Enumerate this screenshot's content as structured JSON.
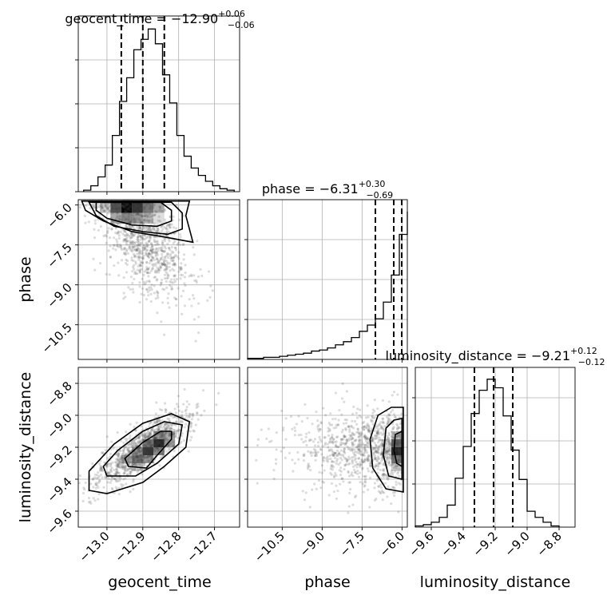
{
  "figure": {
    "type": "corner plot"
  },
  "chart_data": [
    {
      "panel": "geocent_time-marginal",
      "type": "histogram",
      "title": "geocent_time = −12.90",
      "title_plus": "+0.06",
      "title_minus": "−0.06",
      "xlim": [
        -13.08,
        -12.63
      ],
      "x_ticks": [
        -13.0,
        -12.9,
        -12.8,
        -12.7
      ],
      "quantiles": [
        -12.96,
        -12.9,
        -12.84
      ],
      "bin_edges": [
        -13.065,
        -13.045,
        -13.025,
        -13.005,
        -12.985,
        -12.965,
        -12.945,
        -12.925,
        -12.905,
        -12.885,
        -12.865,
        -12.845,
        -12.825,
        -12.805,
        -12.785,
        -12.765,
        -12.745,
        -12.725,
        -12.705,
        -12.685,
        -12.665,
        -12.645
      ],
      "counts": [
        1,
        4,
        10,
        18,
        38,
        61,
        77,
        96,
        103,
        110,
        100,
        79,
        60,
        38,
        24,
        16,
        11,
        7,
        4,
        2,
        1
      ]
    },
    {
      "panel": "phase-marginal",
      "type": "histogram",
      "title": "phase = −6.31",
      "title_plus": "+0.30",
      "title_minus": "−0.69",
      "xlim": [
        -11.8,
        -5.8
      ],
      "x_ticks": [
        -10.5,
        -9.0,
        -7.5,
        -6.0
      ],
      "quantiles": [
        -7.0,
        -6.31,
        -6.01
      ],
      "bin_edges": [
        -11.8,
        -11.5,
        -11.2,
        -10.9,
        -10.6,
        -10.3,
        -10.0,
        -9.7,
        -9.4,
        -9.1,
        -8.8,
        -8.5,
        -8.2,
        -7.9,
        -7.6,
        -7.3,
        -7.0,
        -6.7,
        -6.4,
        -6.1,
        -5.8
      ],
      "counts": [
        1,
        1,
        2,
        2,
        3,
        4,
        5,
        6,
        8,
        9,
        11,
        14,
        17,
        21,
        27,
        33,
        39,
        55,
        81,
        120,
        142
      ]
    },
    {
      "panel": "luminosity_distance-marginal",
      "type": "histogram",
      "title": "luminosity_distance = −9.21",
      "title_plus": "+0.12",
      "title_minus": "−0.12",
      "xlim": [
        -9.7,
        -8.7
      ],
      "x_ticks": [
        -9.6,
        -9.4,
        -9.2,
        -9.0,
        -8.8
      ],
      "quantiles": [
        -9.33,
        -9.21,
        -9.09
      ],
      "bin_edges": [
        -9.7,
        -9.65,
        -9.6,
        -9.55,
        -9.5,
        -9.45,
        -9.4,
        -9.35,
        -9.3,
        -9.25,
        -9.2,
        -9.15,
        -9.1,
        -9.05,
        -9.0,
        -8.95,
        -8.9,
        -8.85,
        -8.8
      ],
      "counts": [
        1,
        2,
        4,
        8,
        18,
        40,
        66,
        93,
        112,
        121,
        114,
        91,
        63,
        39,
        13,
        8,
        4,
        1
      ]
    },
    {
      "panel": "phase-vs-geocent_time",
      "type": "scatter",
      "x_label": "geocent_time",
      "y_label": "phase",
      "xlim": [
        -13.08,
        -12.63
      ],
      "ylim": [
        -11.8,
        -5.8
      ],
      "x_ticks": [
        -13.0,
        -12.9,
        -12.8,
        -12.7
      ],
      "y_ticks": [
        -10.5,
        -9.0,
        -7.5,
        -6.0
      ],
      "density_peak": {
        "x": -12.95,
        "y": -6.1
      },
      "correlation": "negative"
    },
    {
      "panel": "luminosity_distance-vs-geocent_time",
      "type": "scatter",
      "x_label": "geocent_time",
      "y_label": "luminosity_distance",
      "xlim": [
        -13.08,
        -12.63
      ],
      "ylim": [
        -9.7,
        -8.7
      ],
      "x_ticks": [
        -13.0,
        -12.9,
        -12.8,
        -12.7
      ],
      "y_ticks": [
        -9.6,
        -9.4,
        -9.2,
        -9.0,
        -8.8
      ],
      "density_peak": {
        "x": -12.9,
        "y": -9.21
      },
      "correlation": "positive"
    },
    {
      "panel": "luminosity_distance-vs-phase",
      "type": "scatter",
      "x_label": "phase",
      "y_label": "luminosity_distance",
      "xlim": [
        -11.8,
        -5.8
      ],
      "ylim": [
        -9.7,
        -8.7
      ],
      "x_ticks": [
        -10.5,
        -9.0,
        -7.5,
        -6.0
      ],
      "y_ticks": [
        -9.6,
        -9.4,
        -9.2,
        -9.0,
        -8.8
      ],
      "density_peak": {
        "x": -6.05,
        "y": -9.2
      },
      "correlation": "none"
    }
  ],
  "labels": {
    "x": [
      "geocent_time",
      "phase",
      "luminosity_distance"
    ],
    "y_row2": "phase",
    "y_row3": "luminosity_distance"
  },
  "tick_labels": {
    "geocent_time": [
      "−13.0",
      "−12.9",
      "−12.8",
      "−12.7"
    ],
    "phase": [
      "−10.5",
      "−9.0",
      "−7.5",
      "−6.0"
    ],
    "luminosity_distance": [
      "−9.6",
      "−9.4",
      "−9.2",
      "−9.0",
      "−8.8"
    ]
  }
}
